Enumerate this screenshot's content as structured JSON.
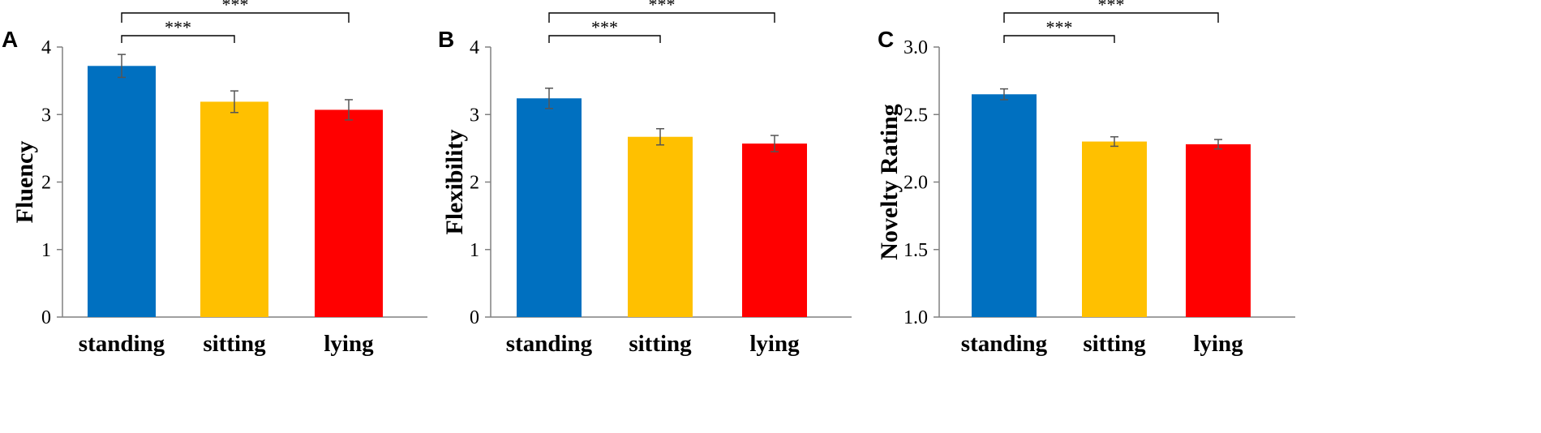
{
  "chart_data": [
    {
      "type": "bar",
      "panel": "A",
      "ylabel": "Fluency",
      "xlabel": "",
      "categories": [
        "standing",
        "sitting",
        "lying"
      ],
      "values": [
        3.72,
        3.19,
        3.07
      ],
      "errors": [
        0.17,
        0.16,
        0.15
      ],
      "ylim": [
        0,
        4
      ],
      "yticks": [
        "0",
        "1",
        "2",
        "3",
        "4"
      ],
      "ytick_values": [
        0,
        1,
        2,
        3,
        4
      ],
      "colors": [
        "#0070C0",
        "#FFC000",
        "#FF0000"
      ],
      "significance": [
        {
          "from": "standing",
          "to": "sitting",
          "label": "***"
        },
        {
          "from": "standing",
          "to": "lying",
          "label": "***"
        }
      ]
    },
    {
      "type": "bar",
      "panel": "B",
      "ylabel": "Flexibility",
      "xlabel": "",
      "categories": [
        "standing",
        "sitting",
        "lying"
      ],
      "values": [
        3.24,
        2.67,
        2.57
      ],
      "errors": [
        0.15,
        0.12,
        0.12
      ],
      "ylim": [
        0,
        4
      ],
      "yticks": [
        "0",
        "1",
        "2",
        "3",
        "4"
      ],
      "ytick_values": [
        0,
        1,
        2,
        3,
        4
      ],
      "colors": [
        "#0070C0",
        "#FFC000",
        "#FF0000"
      ],
      "significance": [
        {
          "from": "standing",
          "to": "sitting",
          "label": "***"
        },
        {
          "from": "standing",
          "to": "lying",
          "label": "***"
        }
      ]
    },
    {
      "type": "bar",
      "panel": "C",
      "ylabel": "Novelty Rating",
      "xlabel": "",
      "categories": [
        "standing",
        "sitting",
        "lying"
      ],
      "values": [
        2.65,
        2.3,
        2.28
      ],
      "errors": [
        0.04,
        0.035,
        0.035
      ],
      "ylim": [
        1.0,
        3.0
      ],
      "yticks": [
        "1.0",
        "1.5",
        "2.0",
        "2.5",
        "3.0"
      ],
      "ytick_values": [
        1.0,
        1.5,
        2.0,
        2.5,
        3.0
      ],
      "colors": [
        "#0070C0",
        "#FFC000",
        "#FF0000"
      ],
      "significance": [
        {
          "from": "standing",
          "to": "sitting",
          "label": "***"
        },
        {
          "from": "standing",
          "to": "lying",
          "label": "***"
        }
      ]
    }
  ]
}
